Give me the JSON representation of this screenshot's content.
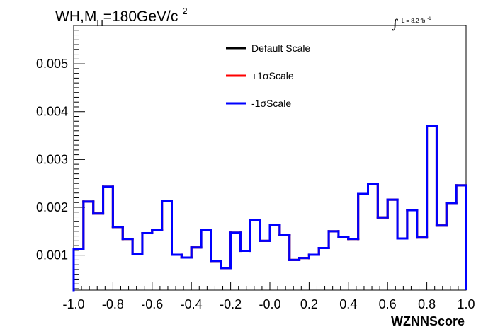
{
  "chart_data": {
    "type": "histogram",
    "title_main": "WH,M",
    "title_sub": "H",
    "title_rest": "=180GeV/c",
    "title_sup": "2",
    "lumi": {
      "integral_symbol": "∫",
      "text": "L = 8.2 fb",
      "sup": "-1"
    },
    "xlabel": "WZNNScore",
    "ylabel": "",
    "xlim": [
      -1.0,
      1.0
    ],
    "ylim": [
      0.00027,
      0.0058
    ],
    "x_ticks": [
      "-1.0",
      "-0.8",
      "-0.6",
      "-0.4",
      "-0.2",
      "-0.0",
      "0.2",
      "0.4",
      "0.6",
      "0.8",
      "1.0"
    ],
    "y_ticks": [
      "0.001",
      "0.002",
      "0.003",
      "0.004",
      "0.005"
    ],
    "bins": 40,
    "series": [
      {
        "name": "Default Scale",
        "color": "#000000",
        "values": [
          0.00113,
          0.00212,
          0.00187,
          0.00243,
          0.00159,
          0.00134,
          0.00102,
          0.00146,
          0.00153,
          0.00213,
          0.00101,
          0.00095,
          0.00116,
          0.00153,
          0.00088,
          0.00073,
          0.00147,
          0.00109,
          0.00173,
          0.0013,
          0.00163,
          0.00142,
          0.0009,
          0.00094,
          0.00101,
          0.00115,
          0.0015,
          0.00138,
          0.00134,
          0.00228,
          0.00248,
          0.00179,
          0.00216,
          0.00135,
          0.00194,
          0.00137,
          0.0037,
          0.00162,
          0.00209,
          0.00246
        ]
      },
      {
        "name": "+1σScale",
        "color": "#ff0000",
        "values": [
          0.00113,
          0.00212,
          0.00187,
          0.00243,
          0.00159,
          0.00134,
          0.00102,
          0.00146,
          0.00153,
          0.00213,
          0.00101,
          0.00095,
          0.00116,
          0.00153,
          0.00088,
          0.00073,
          0.00147,
          0.00109,
          0.00173,
          0.0013,
          0.00163,
          0.00142,
          0.0009,
          0.00094,
          0.00101,
          0.00115,
          0.0015,
          0.00138,
          0.00134,
          0.00228,
          0.00248,
          0.00179,
          0.00216,
          0.00135,
          0.00194,
          0.00137,
          0.0037,
          0.00162,
          0.00209,
          0.00246
        ]
      },
      {
        "name": "-1σScale",
        "color": "#0000ff",
        "values": [
          0.00113,
          0.00212,
          0.00187,
          0.00243,
          0.00159,
          0.00134,
          0.00102,
          0.00146,
          0.00153,
          0.00213,
          0.00101,
          0.00095,
          0.00116,
          0.00153,
          0.00088,
          0.00073,
          0.00147,
          0.00109,
          0.00173,
          0.0013,
          0.00163,
          0.00142,
          0.0009,
          0.00094,
          0.00101,
          0.00115,
          0.0015,
          0.00138,
          0.00134,
          0.00228,
          0.00248,
          0.00179,
          0.00216,
          0.00135,
          0.00194,
          0.00137,
          0.0037,
          0.00162,
          0.00209,
          0.00246
        ]
      }
    ],
    "legend_position": "top-center",
    "grid": false
  }
}
